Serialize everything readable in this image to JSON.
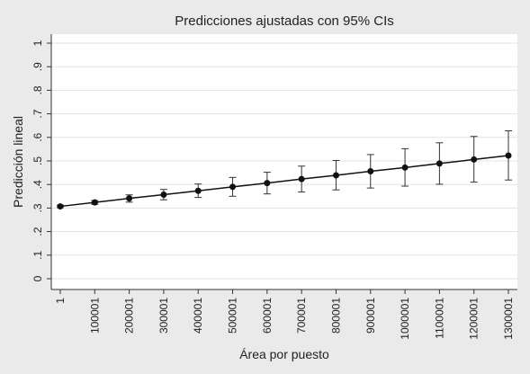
{
  "chart_data": {
    "type": "line",
    "title": "Predicciones ajustadas con 95% CIs",
    "xlabel": "Área por puesto",
    "ylabel": "Predicción lineal",
    "xlim": [
      1,
      1300001
    ],
    "ylim": [
      0,
      1
    ],
    "grid": true,
    "x_ticks": [
      "1",
      "100001",
      "200001",
      "300001",
      "400001",
      "500001",
      "600001",
      "700001",
      "800001",
      "900001",
      "1000001",
      "1100001",
      "1200001",
      "1300001"
    ],
    "y_ticks": [
      "0",
      ".1",
      ".2",
      ".3",
      ".4",
      ".5",
      ".6",
      ".7",
      ".8",
      ".9",
      "1"
    ],
    "series": [
      {
        "x": [
          1,
          100001,
          200001,
          300001,
          400001,
          500001,
          600001,
          700001,
          800001,
          900001,
          1000001,
          1100001,
          1200001,
          1300001
        ],
        "y": [
          0.307,
          0.324,
          0.341,
          0.357,
          0.373,
          0.39,
          0.406,
          0.423,
          0.439,
          0.456,
          0.472,
          0.489,
          0.506,
          0.523
        ],
        "lower": [
          0.302,
          0.316,
          0.325,
          0.335,
          0.345,
          0.35,
          0.36,
          0.368,
          0.377,
          0.385,
          0.393,
          0.401,
          0.41,
          0.419
        ],
        "upper": [
          0.312,
          0.332,
          0.356,
          0.379,
          0.402,
          0.43,
          0.452,
          0.478,
          0.502,
          0.527,
          0.552,
          0.577,
          0.604,
          0.628
        ]
      }
    ]
  }
}
